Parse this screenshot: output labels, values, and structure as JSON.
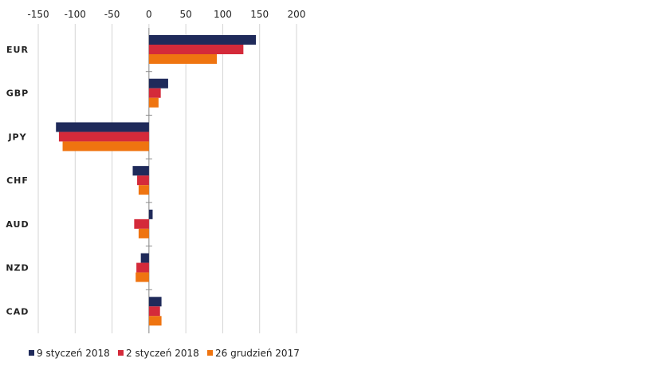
{
  "chart_data": {
    "type": "bar",
    "orientation": "horizontal",
    "categories": [
      "EUR",
      "GBP",
      "JPY",
      "CHF",
      "AUD",
      "NZD",
      "CAD"
    ],
    "series": [
      {
        "name": "9 styczeń 2018",
        "color": "#1f2a5a",
        "values": [
          145,
          26,
          -126,
          -22,
          5,
          -11,
          17
        ]
      },
      {
        "name": "2 styczeń 2018",
        "color": "#d42a3a",
        "values": [
          128,
          16,
          -122,
          -16,
          -20,
          -17,
          15
        ]
      },
      {
        "name": "26 grudzień 2017",
        "color": "#ef7410",
        "values": [
          92,
          13,
          -117,
          -14,
          -14,
          -18,
          17
        ]
      }
    ],
    "xlim": [
      -150,
      200
    ],
    "xticks": [
      -150,
      -100,
      -50,
      0,
      50,
      100,
      150,
      200
    ],
    "xtick_labels": [
      "-150",
      "-100",
      "-50",
      "0",
      "50",
      "100",
      "150",
      "200"
    ],
    "grid": "vertical",
    "legend_position": "bottom-left"
  }
}
